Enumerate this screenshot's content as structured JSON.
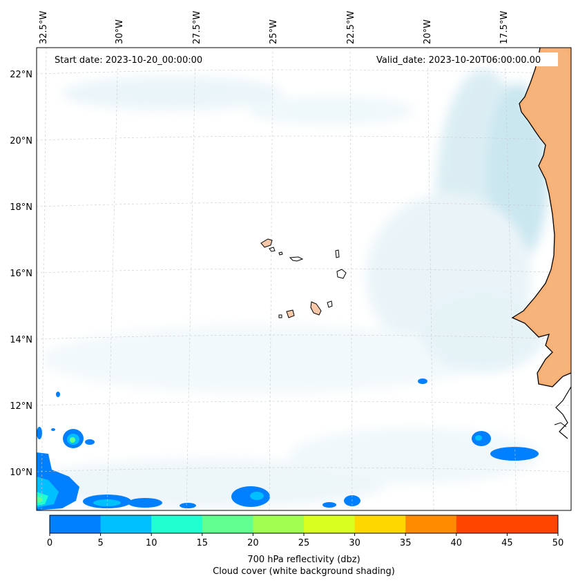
{
  "map": {
    "start_date": "Start date: 2023-10-20_00:00:00",
    "valid_date": "Valid_date: 2023-10-20T06:00:00.00",
    "lon_labels": [
      "32.5°W",
      "30°W",
      "27.5°W",
      "25°W",
      "22.5°W",
      "20°W",
      "17.5°W"
    ],
    "lat_labels": [
      "22°N",
      "20°N",
      "18°N",
      "16°N",
      "14°N",
      "12°N",
      "10°N"
    ],
    "land_color": "#f4a460",
    "cloud_color": "#add8e6"
  },
  "colorbar": {
    "ticks": [
      "0",
      "5",
      "10",
      "15",
      "20",
      "25",
      "30",
      "35",
      "40",
      "45",
      "50"
    ],
    "colors": [
      "#0080ff",
      "#00c0ff",
      "#20ffd0",
      "#60ff90",
      "#a0ff50",
      "#d8ff20",
      "#ffd800",
      "#ff8c00",
      "#ff4500",
      "#ff4500"
    ],
    "label_line1": "700 hPa reflectivity (dbz)",
    "label_line2": "Cloud cover (white background shading)"
  }
}
